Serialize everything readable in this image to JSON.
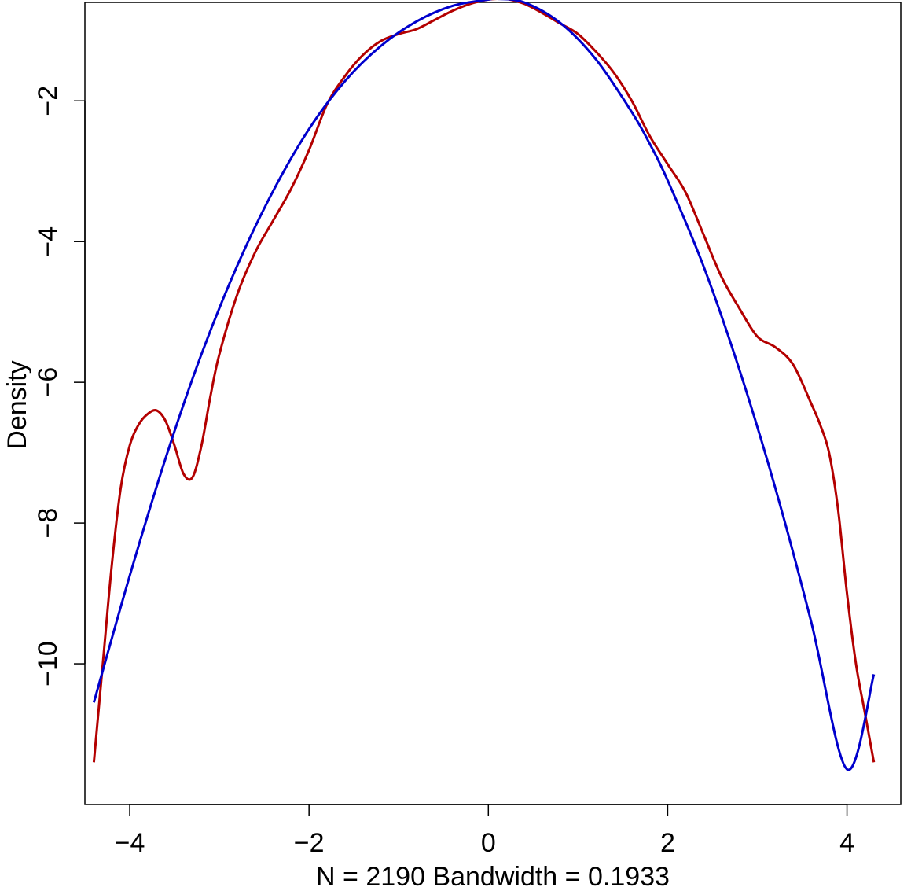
{
  "chart_data": {
    "type": "line",
    "title": "",
    "xlabel": "N = 2190  Bandwidth = 0.1933",
    "ylabel": "Density",
    "xlim": [
      -4.5,
      4.6
    ],
    "ylim": [
      -12.0,
      -0.6
    ],
    "x_ticks": [
      -4,
      -2,
      0,
      2,
      4
    ],
    "y_ticks": [
      -10,
      -8,
      -6,
      -4,
      -2
    ],
    "x_tick_labels": [
      "−4",
      "−2",
      "0",
      "2",
      "4"
    ],
    "y_tick_labels": [
      "−10",
      "−8",
      "−6",
      "−4",
      "−2"
    ],
    "grid": false,
    "series": [
      {
        "color": "#b30000",
        "x": [
          -4.4,
          -4.3,
          -4.2,
          -4.1,
          -4.0,
          -3.9,
          -3.8,
          -3.7,
          -3.6,
          -3.5,
          -3.4,
          -3.3,
          -3.2,
          -3.1,
          -3.0,
          -2.8,
          -2.6,
          -2.4,
          -2.2,
          -2.0,
          -1.8,
          -1.6,
          -1.4,
          -1.2,
          -1.0,
          -0.8,
          -0.6,
          -0.4,
          -0.2,
          0.0,
          0.1,
          0.2,
          0.4,
          0.6,
          0.8,
          1.0,
          1.2,
          1.4,
          1.6,
          1.8,
          2.0,
          2.2,
          2.4,
          2.6,
          2.8,
          3.0,
          3.2,
          3.4,
          3.6,
          3.7,
          3.8,
          3.9,
          4.0,
          4.1,
          4.2,
          4.3
        ],
        "y": [
          -11.4,
          -10.0,
          -8.6,
          -7.5,
          -6.9,
          -6.6,
          -6.45,
          -6.4,
          -6.55,
          -6.9,
          -7.3,
          -7.35,
          -6.9,
          -6.2,
          -5.6,
          -4.75,
          -4.15,
          -3.7,
          -3.25,
          -2.7,
          -2.05,
          -1.65,
          -1.35,
          -1.15,
          -1.05,
          -0.98,
          -0.85,
          -0.72,
          -0.62,
          -0.56,
          -0.55,
          -0.55,
          -0.62,
          -0.75,
          -0.9,
          -1.05,
          -1.3,
          -1.6,
          -2.0,
          -2.5,
          -2.9,
          -3.3,
          -3.9,
          -4.5,
          -4.95,
          -5.35,
          -5.5,
          -5.75,
          -6.3,
          -6.6,
          -7.0,
          -7.8,
          -9.0,
          -10.0,
          -10.7,
          -11.4
        ]
      },
      {
        "color": "#0000cc",
        "x": [
          -4.4,
          -4.0,
          -3.6,
          -3.2,
          -2.8,
          -2.4,
          -2.0,
          -1.6,
          -1.2,
          -0.8,
          -0.4,
          0.0,
          0.1,
          0.4,
          0.8,
          1.2,
          1.6,
          1.8,
          2.0,
          2.4,
          2.8,
          3.2,
          3.6,
          4.0,
          4.3
        ],
        "y": [
          -10.55,
          -8.75,
          -7.08,
          -5.6,
          -4.34,
          -3.28,
          -2.4,
          -1.72,
          -1.22,
          -0.87,
          -0.65,
          -0.56,
          -0.55,
          -0.6,
          -0.89,
          -1.41,
          -2.16,
          -2.61,
          -3.13,
          -4.35,
          -5.82,
          -7.5,
          -9.4,
          -11.5,
          -10.15
        ]
      }
    ]
  }
}
